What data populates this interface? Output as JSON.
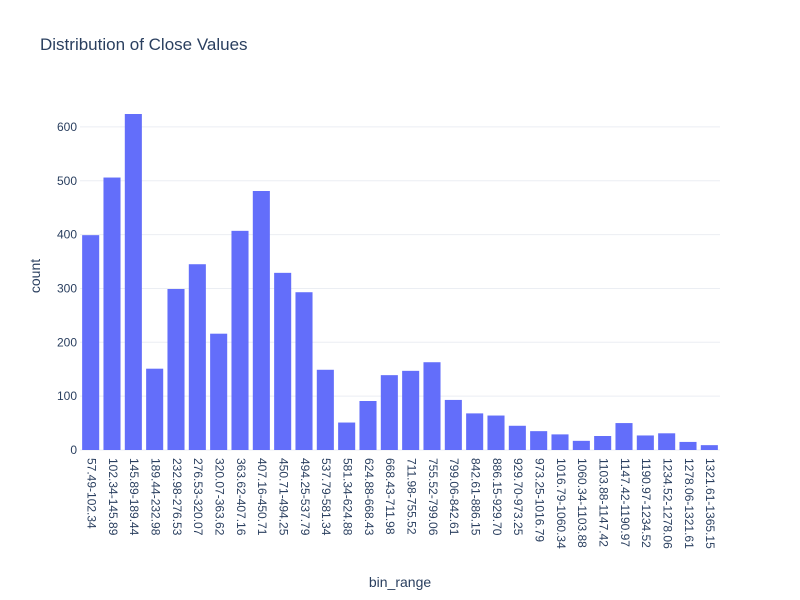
{
  "chart_data": {
    "type": "bar",
    "title": "Distribution of Close Values",
    "xlabel": "bin_range",
    "ylabel": "count",
    "ylim": [
      0,
      650
    ],
    "yticks": [
      0,
      100,
      200,
      300,
      400,
      500,
      600
    ],
    "grid": true,
    "bar_color": "#636efa",
    "categories": [
      "57.49-102.34",
      "102.34-145.89",
      "145.89-189.44",
      "189.44-232.98",
      "232.98-276.53",
      "276.53-320.07",
      "320.07-363.62",
      "363.62-407.16",
      "407.16-450.71",
      "450.71-494.25",
      "494.25-537.79",
      "537.79-581.34",
      "581.34-624.88",
      "624.88-668.43",
      "668.43-711.98",
      "711.98-755.52",
      "755.52-799.06",
      "799.06-842.61",
      "842.61-886.15",
      "886.15-929.70",
      "929.70-973.25",
      "973.25-1016.79",
      "1016.79-1060.34",
      "1060.34-1103.88",
      "1103.88-1147.42",
      "1147.42-1190.97",
      "1190.97-1234.52",
      "1234.52-1278.06",
      "1278.06-1321.61",
      "1321.61-1365.15"
    ],
    "values": [
      399,
      506,
      624,
      151,
      299,
      345,
      216,
      407,
      481,
      329,
      293,
      149,
      51,
      91,
      139,
      147,
      163,
      93,
      68,
      64,
      45,
      35,
      29,
      17,
      26,
      50,
      27,
      31,
      15,
      9
    ]
  }
}
